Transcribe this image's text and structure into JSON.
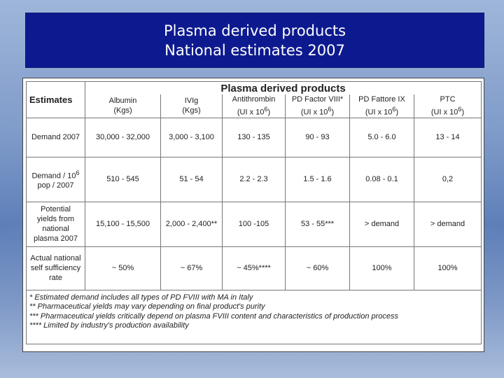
{
  "slide": {
    "title_line1": "Plasma derived products",
    "title_line2": "National estimates 2007"
  },
  "table": {
    "estimates_label": "Estimates",
    "group_header": "Plasma derived products",
    "columns": [
      {
        "name": "Albumin",
        "unit": "(Kgs)"
      },
      {
        "name": "IVIg",
        "unit": "(Kgs)"
      },
      {
        "name": "Antithrombin",
        "unit_base": "(UI x 10",
        "unit_exp": "6",
        "unit_close": ")"
      },
      {
        "name": "PD Factor VIII*",
        "unit_base": "(UI x 10",
        "unit_exp": "6",
        "unit_close": ")"
      },
      {
        "name": "PD Fattore IX",
        "unit_base": "(UI x 10",
        "unit_exp": "6",
        "unit_close": ")"
      },
      {
        "name": "PTC",
        "unit_base": "(UI x 10",
        "unit_exp": "6",
        "unit_close": ")"
      }
    ],
    "rows": [
      {
        "label": "Demand 2007",
        "values": [
          "30,000 - 32,000",
          "3,000 - 3,100",
          "130 - 135",
          "90 - 93",
          "5.0 - 6.0",
          "13 - 14"
        ]
      },
      {
        "label_pre": "Demand / 10",
        "label_exp": "6",
        "label_post": "pop / 2007",
        "values": [
          "510 - 545",
          "51 - 54",
          "2.2 - 2.3",
          "1.5 - 1.6",
          "0.08 - 0.1",
          "0,2"
        ]
      },
      {
        "label_l1": "Potential",
        "label_l2": "yields from",
        "label_l3": "national",
        "label_l4": "plasma 2007",
        "values": [
          "15,100 - 15,500",
          "2,000 - 2,400**",
          "100 -105",
          "53 - 55***",
          "> demand",
          "> demand"
        ]
      },
      {
        "label_l1": "Actual national",
        "label_l2": "self sufficiency",
        "label_l3": "rate",
        "values": [
          "~ 50%",
          "~ 67%",
          "~ 45%****",
          "~ 60%",
          "100%",
          "100%"
        ]
      }
    ],
    "notes": [
      "* Estimated demand includes all types of PD FVIII with MA in Italy",
      "** Pharmaceutical yields may vary depending on final product's purity",
      "*** Pharmaceutical yields critically depend on plasma FVIII content and characteristics of production process",
      "**** Limited by industry's production availability"
    ]
  }
}
